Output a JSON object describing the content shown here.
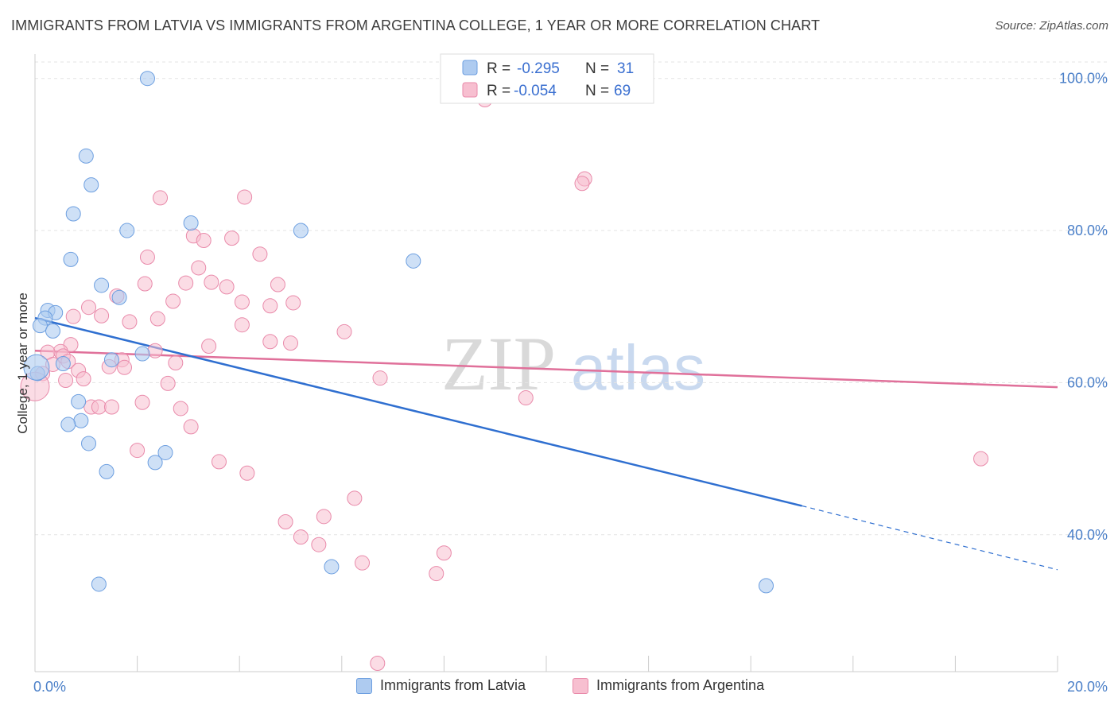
{
  "header": {
    "title": "IMMIGRANTS FROM LATVIA VS IMMIGRANTS FROM ARGENTINA COLLEGE, 1 YEAR OR MORE CORRELATION CHART",
    "source": "Source: ZipAtlas.com"
  },
  "watermark": {
    "zip": "ZIP",
    "atlas": "atlas"
  },
  "colors": {
    "latvia_fill": "#aecbf0",
    "latvia_stroke": "#6d9fe0",
    "latvia_line": "#2f6fd0",
    "argentina_fill": "#f7bfd0",
    "argentina_stroke": "#e98aaa",
    "argentina_line": "#e0709a",
    "grid": "#e3e3e3",
    "tick_text": "#4a7fc8"
  },
  "chart_data": {
    "type": "scatter",
    "title": "IMMIGRANTS FROM LATVIA VS IMMIGRANTS FROM ARGENTINA COLLEGE, 1 YEAR OR MORE CORRELATION CHART",
    "xlabel": "",
    "ylabel": "College, 1 year or more",
    "xlim": [
      0,
      20
    ],
    "ylim": [
      22,
      103
    ],
    "x_tick_labels": [
      "0.0%",
      "20.0%"
    ],
    "y_ticks": [
      40,
      60,
      80,
      100
    ],
    "y_tick_labels": [
      "40.0%",
      "60.0%",
      "80.0%",
      "100.0%"
    ],
    "legend": [
      {
        "r_label": "R =",
        "r_value": "-0.295",
        "n_label": "N =",
        "n_value": "31"
      },
      {
        "r_label": "R =",
        "r_value": "-0.054",
        "n_label": "N =",
        "n_value": "69"
      }
    ],
    "series": [
      {
        "name": "Immigrants from Latvia",
        "trend": {
          "x0": 0.0,
          "y0": 68.5,
          "x1": 15.0,
          "y1": 43.8,
          "dash_to_x": 20.0,
          "dash_to_y": 35.4
        },
        "points": [
          [
            2.2,
            100.0
          ],
          [
            1.0,
            89.8
          ],
          [
            1.1,
            86.0
          ],
          [
            0.75,
            82.2
          ],
          [
            1.8,
            80.0
          ],
          [
            3.05,
            81.0
          ],
          [
            5.2,
            80.0
          ],
          [
            7.4,
            76.0
          ],
          [
            0.7,
            76.2
          ],
          [
            1.3,
            72.8
          ],
          [
            1.65,
            71.2
          ],
          [
            0.25,
            69.5
          ],
          [
            0.4,
            69.2
          ],
          [
            0.2,
            68.5
          ],
          [
            0.1,
            67.5
          ],
          [
            0.35,
            66.8
          ],
          [
            2.1,
            63.8
          ],
          [
            1.5,
            63.0
          ],
          [
            0.55,
            62.5
          ],
          [
            0.05,
            61.2
          ],
          [
            0.85,
            57.5
          ],
          [
            0.9,
            55.0
          ],
          [
            0.65,
            54.5
          ],
          [
            1.05,
            52.0
          ],
          [
            2.55,
            50.8
          ],
          [
            2.35,
            49.5
          ],
          [
            1.4,
            48.3
          ],
          [
            5.8,
            35.8
          ],
          [
            1.25,
            33.5
          ],
          [
            14.3,
            33.3
          ],
          [
            0.03,
            62.0
          ]
        ]
      },
      {
        "name": "Immigrants from Argentina",
        "trend": {
          "x0": 0.0,
          "y0": 64.2,
          "x1": 20.0,
          "y1": 59.4
        },
        "points": [
          [
            8.8,
            97.2
          ],
          [
            10.75,
            86.8
          ],
          [
            10.7,
            86.2
          ],
          [
            2.45,
            84.3
          ],
          [
            4.1,
            84.4
          ],
          [
            3.1,
            79.3
          ],
          [
            3.3,
            78.7
          ],
          [
            3.85,
            79.0
          ],
          [
            4.4,
            76.9
          ],
          [
            2.2,
            76.5
          ],
          [
            3.2,
            75.1
          ],
          [
            1.6,
            71.4
          ],
          [
            2.15,
            73.0
          ],
          [
            2.95,
            73.1
          ],
          [
            3.45,
            73.2
          ],
          [
            3.75,
            72.6
          ],
          [
            4.75,
            72.9
          ],
          [
            4.05,
            70.6
          ],
          [
            5.05,
            70.5
          ],
          [
            4.6,
            70.1
          ],
          [
            2.7,
            70.7
          ],
          [
            1.05,
            69.9
          ],
          [
            0.75,
            68.7
          ],
          [
            1.3,
            68.8
          ],
          [
            2.4,
            68.4
          ],
          [
            1.85,
            68.0
          ],
          [
            4.05,
            67.6
          ],
          [
            6.05,
            66.7
          ],
          [
            4.6,
            65.4
          ],
          [
            5.0,
            65.2
          ],
          [
            3.4,
            64.8
          ],
          [
            0.7,
            65.0
          ],
          [
            2.35,
            64.2
          ],
          [
            0.5,
            64.1
          ],
          [
            0.25,
            64.0
          ],
          [
            0.55,
            63.5
          ],
          [
            1.7,
            63.0
          ],
          [
            0.65,
            62.8
          ],
          [
            2.75,
            62.6
          ],
          [
            0.35,
            62.4
          ],
          [
            1.45,
            62.1
          ],
          [
            1.75,
            62.0
          ],
          [
            0.85,
            61.6
          ],
          [
            0.15,
            61.2
          ],
          [
            0.95,
            60.5
          ],
          [
            0.6,
            60.3
          ],
          [
            2.6,
            59.9
          ],
          [
            6.75,
            60.6
          ],
          [
            0.0,
            59.5
          ],
          [
            9.6,
            58.0
          ],
          [
            2.1,
            57.4
          ],
          [
            1.1,
            56.8
          ],
          [
            1.25,
            56.8
          ],
          [
            1.5,
            56.8
          ],
          [
            2.85,
            56.6
          ],
          [
            3.05,
            54.2
          ],
          [
            2.0,
            51.1
          ],
          [
            18.5,
            50.0
          ],
          [
            3.6,
            49.6
          ],
          [
            4.15,
            48.1
          ],
          [
            6.25,
            44.8
          ],
          [
            5.65,
            42.4
          ],
          [
            4.9,
            41.7
          ],
          [
            5.2,
            39.7
          ],
          [
            5.55,
            38.7
          ],
          [
            6.4,
            36.3
          ],
          [
            8.0,
            37.6
          ],
          [
            7.85,
            34.9
          ],
          [
            6.7,
            23.1
          ]
        ]
      }
    ]
  }
}
